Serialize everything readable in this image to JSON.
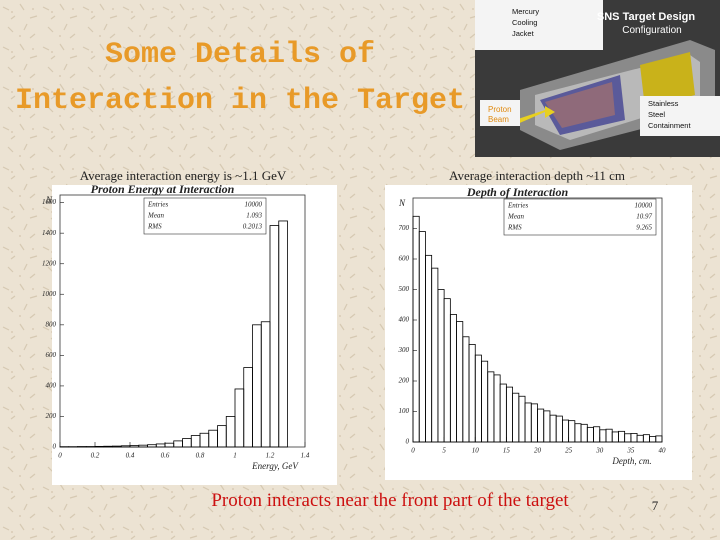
{
  "slide": {
    "title_lines": [
      "Some Details of",
      "Interaction in the Target"
    ],
    "caption_left": "Average interaction energy is ~1.1 GeV",
    "caption_right": "Average interaction depth ~11 cm",
    "conclusion": "Proton interacts near the front part of the target",
    "page_number": "7"
  },
  "target_image": {
    "title_lines": [
      "SNS Target Design",
      "Configuration"
    ],
    "jacket_lines": [
      "Mercury",
      "Cooling",
      "Jacket"
    ],
    "beam_lines": [
      "Proton",
      "Beam"
    ],
    "containment_lines": [
      "Stainless",
      "Steel",
      "Containment"
    ]
  },
  "chart_data": [
    {
      "type": "histogram",
      "title": "Proton Energy at Interaction",
      "xlabel": "Energy, GeV",
      "ylabel": "N",
      "color": "#000000",
      "bins": [
        0,
        0.05,
        0.1,
        0.15,
        0.2,
        0.25,
        0.3,
        0.35,
        0.4,
        0.45,
        0.5,
        0.55,
        0.6,
        0.65,
        0.7,
        0.75,
        0.8,
        0.85,
        0.9,
        0.95,
        1,
        1.05,
        1.1,
        1.15,
        1.2,
        1.25,
        1.3,
        1.35,
        1.4
      ],
      "values": [
        2,
        2,
        3,
        3,
        4,
        5,
        6,
        8,
        10,
        12,
        15,
        20,
        25,
        40,
        55,
        75,
        90,
        110,
        140,
        200,
        380,
        520,
        800,
        820,
        1450,
        1480,
        0,
        0
      ],
      "xlim": [
        0,
        1.4
      ],
      "xticks": [
        0,
        0.2,
        0.4,
        0.6,
        0.8,
        1,
        1.2,
        1.4
      ],
      "ylim": [
        0,
        1650
      ],
      "yticks": [
        0,
        200,
        400,
        600,
        800,
        1000,
        1200,
        1400,
        1600
      ],
      "stats": [
        {
          "label": "Entries",
          "value": 10000
        },
        {
          "label": "Mean",
          "value": 1.093
        },
        {
          "label": "RMS",
          "value": 0.2013
        }
      ]
    },
    {
      "type": "histogram",
      "title": "Depth of Interaction",
      "xlabel": "Depth, cm.",
      "ylabel": "N",
      "color": "#000000",
      "bins": [
        0,
        1,
        2,
        3,
        4,
        5,
        6,
        7,
        8,
        9,
        10,
        11,
        12,
        13,
        14,
        15,
        16,
        17,
        18,
        19,
        20,
        21,
        22,
        23,
        24,
        25,
        26,
        27,
        28,
        29,
        30,
        31,
        32,
        33,
        34,
        35,
        36,
        37,
        38,
        39,
        40
      ],
      "values": [
        740,
        690,
        612,
        570,
        500,
        470,
        418,
        395,
        345,
        320,
        285,
        265,
        230,
        220,
        190,
        180,
        160,
        150,
        128,
        125,
        108,
        102,
        88,
        85,
        72,
        70,
        60,
        58,
        48,
        50,
        40,
        42,
        33,
        35,
        27,
        28,
        22,
        24,
        18,
        20
      ],
      "xlim": [
        0,
        40
      ],
      "xticks": [
        0,
        5,
        10,
        15,
        20,
        25,
        30,
        35,
        40
      ],
      "ylim": [
        0,
        800
      ],
      "yticks": [
        0,
        100,
        200,
        300,
        400,
        500,
        600,
        700
      ],
      "stats": [
        {
          "label": "Entries",
          "value": 10000
        },
        {
          "label": "Mean",
          "value": 10.97
        },
        {
          "label": "RMS",
          "value": 9.265
        }
      ]
    }
  ]
}
